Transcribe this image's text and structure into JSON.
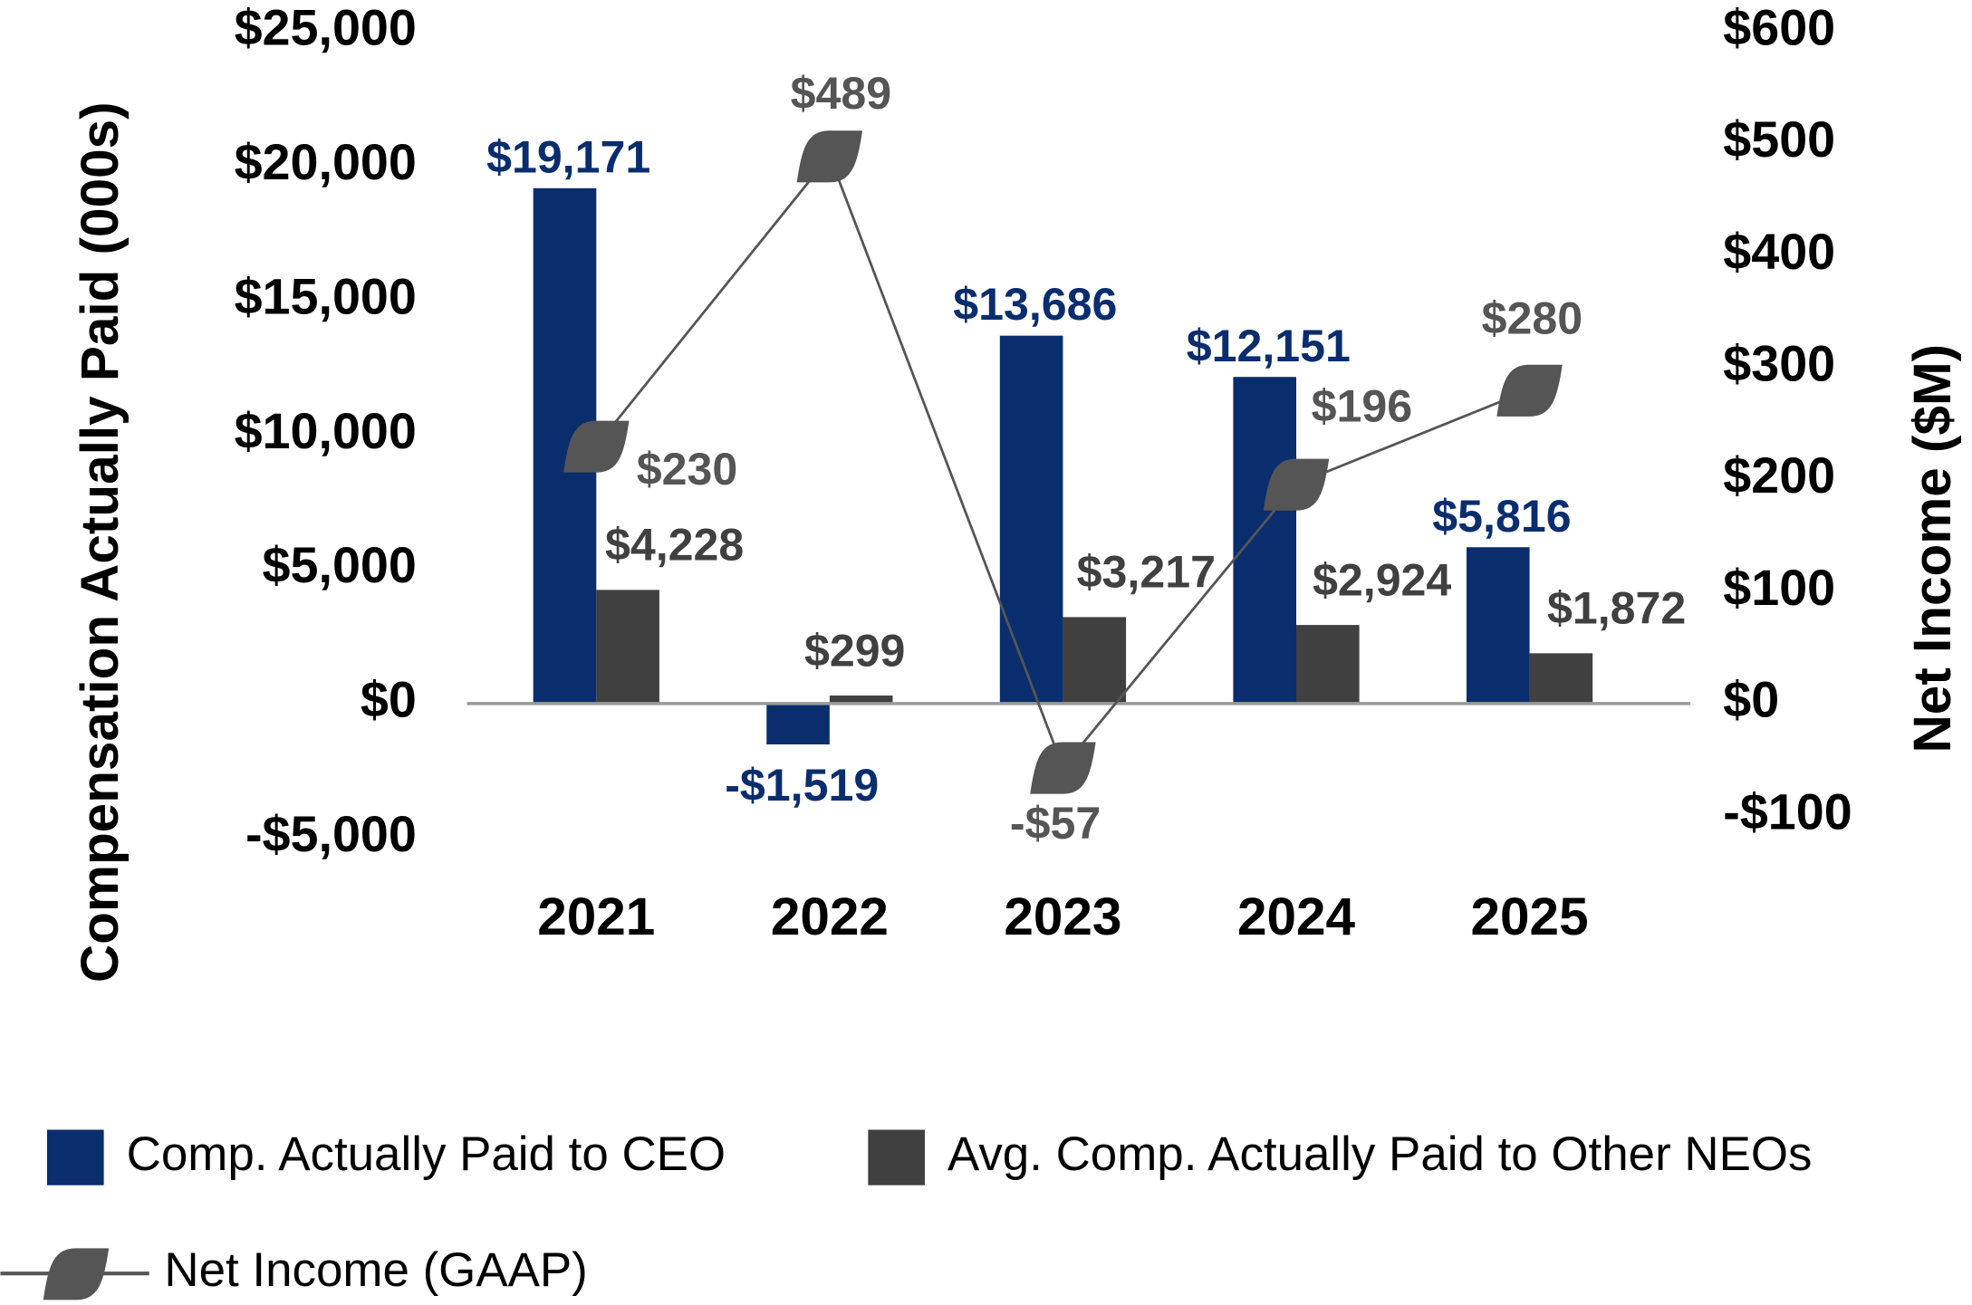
{
  "chart_data": {
    "type": "bar",
    "categories": [
      "2021",
      "2022",
      "2023",
      "2024",
      "2025"
    ],
    "y_label": "Compensation Actually Paid (000s)",
    "y2_label": "Net Income ($M)",
    "ylim": [
      -5000,
      25000
    ],
    "yticks": [
      {
        "value": -5000,
        "label": "-$5,000"
      },
      {
        "value": 0,
        "label": "$0"
      },
      {
        "value": 5000,
        "label": "$5,000"
      },
      {
        "value": 10000,
        "label": "$10,000"
      },
      {
        "value": 15000,
        "label": "$15,000"
      },
      {
        "value": 20000,
        "label": "$20,000"
      },
      {
        "value": 25000,
        "label": "$25,000"
      }
    ],
    "y2lim": [
      -120,
      600
    ],
    "y2ticks": [
      {
        "value": -100,
        "label": "-$100"
      },
      {
        "value": 0,
        "label": "$0"
      },
      {
        "value": 100,
        "label": "$100"
      },
      {
        "value": 200,
        "label": "$200"
      },
      {
        "value": 300,
        "label": "$300"
      },
      {
        "value": 400,
        "label": "$400"
      },
      {
        "value": 500,
        "label": "$500"
      },
      {
        "value": 600,
        "label": "$600"
      }
    ],
    "series": [
      {
        "name": "Comp. Actually Paid to CEO",
        "type": "bar",
        "color": "#0a2d6e",
        "values": [
          19171,
          -1519,
          13686,
          12151,
          5816
        ],
        "value_labels": [
          "$19,171",
          "-$1,519",
          "$13,686",
          "$12,151",
          "$5,816"
        ]
      },
      {
        "name": "Avg. Comp. Actually Paid to Other NEOs",
        "type": "bar",
        "color": "#404040",
        "values": [
          4228,
          299,
          3217,
          2924,
          1872
        ],
        "value_labels": [
          "$4,228",
          "$299",
          "$3,217",
          "$2,924",
          "$1,872"
        ]
      },
      {
        "name": "Net Income (GAAP)",
        "type": "line",
        "axis": "y2",
        "color": "#555555",
        "values": [
          230,
          489,
          -57,
          196,
          280
        ],
        "value_labels": [
          "$230",
          "$489",
          "-$57",
          "$196",
          "$280"
        ]
      }
    ]
  }
}
